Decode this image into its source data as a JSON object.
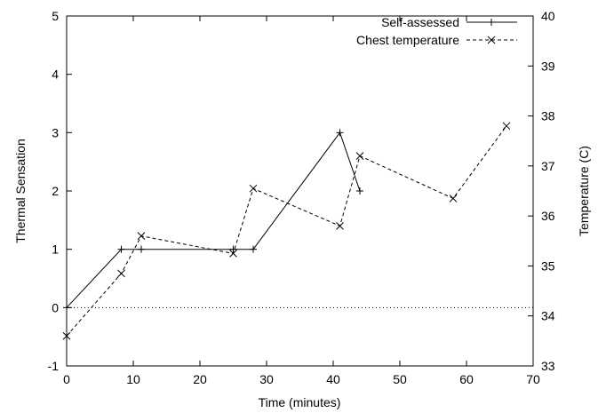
{
  "chart_data": {
    "type": "line",
    "xlabel": "Time (minutes)",
    "ylabel": "Thermal Sensation",
    "y2label": "Temperature (C)",
    "xlim": [
      0,
      70
    ],
    "ylim": [
      -1,
      5
    ],
    "y2lim": [
      33,
      40
    ],
    "x_ticks": [
      "0",
      "10",
      "20",
      "30",
      "40",
      "50",
      "60",
      "70"
    ],
    "y_ticks": [
      "-1",
      "0",
      "1",
      "2",
      "3",
      "4",
      "5"
    ],
    "y2_ticks": [
      "33",
      "34",
      "35",
      "36",
      "37",
      "38",
      "39",
      "40"
    ],
    "grid": false,
    "legend_position": "top-right",
    "reference_line": {
      "y": 0,
      "style": "dotted"
    },
    "series": [
      {
        "name": "Self-assessed",
        "axis": "left",
        "style": "solid",
        "marker": "plus",
        "x": [
          0,
          8.2,
          11.2,
          25,
          28,
          41,
          44
        ],
        "y": [
          0,
          1,
          1,
          1,
          1,
          3,
          2
        ]
      },
      {
        "name": "Chest temperature",
        "axis": "right",
        "style": "dashed",
        "marker": "cross",
        "x": [
          0,
          8.2,
          11.2,
          25,
          28,
          41,
          44,
          58,
          66
        ],
        "y": [
          33.6,
          34.85,
          35.6,
          35.25,
          36.55,
          35.8,
          37.2,
          36.35,
          37.8
        ]
      }
    ]
  }
}
